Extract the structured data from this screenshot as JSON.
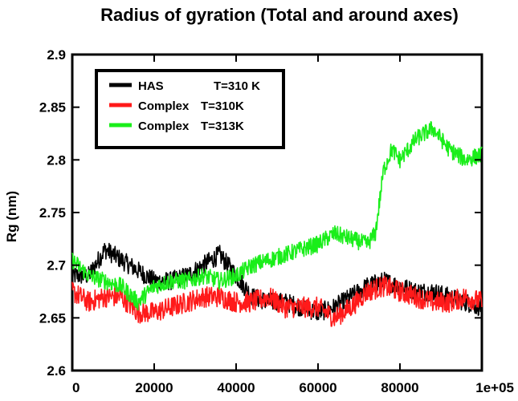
{
  "chart_data": {
    "type": "line",
    "title": "Radius of gyration (Total and around axes)",
    "xlabel": "",
    "ylabel": "Rg (nm)",
    "xlim": [
      0,
      100000
    ],
    "ylim": [
      2.6,
      2.9
    ],
    "x_ticks": [
      "0",
      "20000",
      "40000",
      "60000",
      "80000",
      "1e+05"
    ],
    "y_ticks": [
      "2.6",
      "2.65",
      "2.7",
      "2.75",
      "2.8",
      "2.85",
      "2.9"
    ],
    "grid": false,
    "legend_position": "top-left",
    "series": [
      {
        "name": "HAS",
        "legend_suffix": "T=310 K",
        "color": "#000000",
        "x": [
          0,
          4000,
          8000,
          12000,
          16000,
          20000,
          24000,
          28000,
          32000,
          36000,
          40000,
          44000,
          48000,
          52000,
          56000,
          60000,
          64000,
          68000,
          72000,
          76000,
          80000,
          84000,
          88000,
          92000,
          96000,
          100000
        ],
        "y": [
          2.69,
          2.69,
          2.715,
          2.705,
          2.695,
          2.685,
          2.685,
          2.69,
          2.7,
          2.71,
          2.69,
          2.67,
          2.665,
          2.665,
          2.66,
          2.655,
          2.66,
          2.67,
          2.68,
          2.685,
          2.68,
          2.675,
          2.675,
          2.67,
          2.665,
          2.66
        ]
      },
      {
        "name": "Complex",
        "legend_suffix": "T=310K",
        "color": "#ff1a1a",
        "x": [
          0,
          4000,
          8000,
          12000,
          16000,
          20000,
          24000,
          28000,
          32000,
          36000,
          40000,
          44000,
          48000,
          52000,
          56000,
          60000,
          64000,
          68000,
          72000,
          76000,
          80000,
          84000,
          88000,
          92000,
          96000,
          100000
        ],
        "y": [
          2.675,
          2.665,
          2.67,
          2.67,
          2.655,
          2.655,
          2.66,
          2.665,
          2.67,
          2.67,
          2.665,
          2.665,
          2.67,
          2.66,
          2.66,
          2.66,
          2.65,
          2.66,
          2.675,
          2.68,
          2.675,
          2.67,
          2.665,
          2.665,
          2.67,
          2.665
        ]
      },
      {
        "name": "Complex",
        "legend_suffix": "T=313K",
        "color": "#1aee1a",
        "x": [
          0,
          4000,
          8000,
          12000,
          16000,
          20000,
          24000,
          28000,
          32000,
          36000,
          40000,
          44000,
          48000,
          52000,
          56000,
          60000,
          64000,
          68000,
          72000,
          74000,
          76000,
          78000,
          80000,
          84000,
          88000,
          92000,
          96000,
          100000
        ],
        "y": [
          2.705,
          2.69,
          2.685,
          2.68,
          2.665,
          2.68,
          2.685,
          2.685,
          2.69,
          2.685,
          2.69,
          2.7,
          2.705,
          2.71,
          2.715,
          2.72,
          2.73,
          2.725,
          2.72,
          2.73,
          2.79,
          2.81,
          2.8,
          2.82,
          2.83,
          2.81,
          2.8,
          2.805
        ]
      }
    ]
  }
}
